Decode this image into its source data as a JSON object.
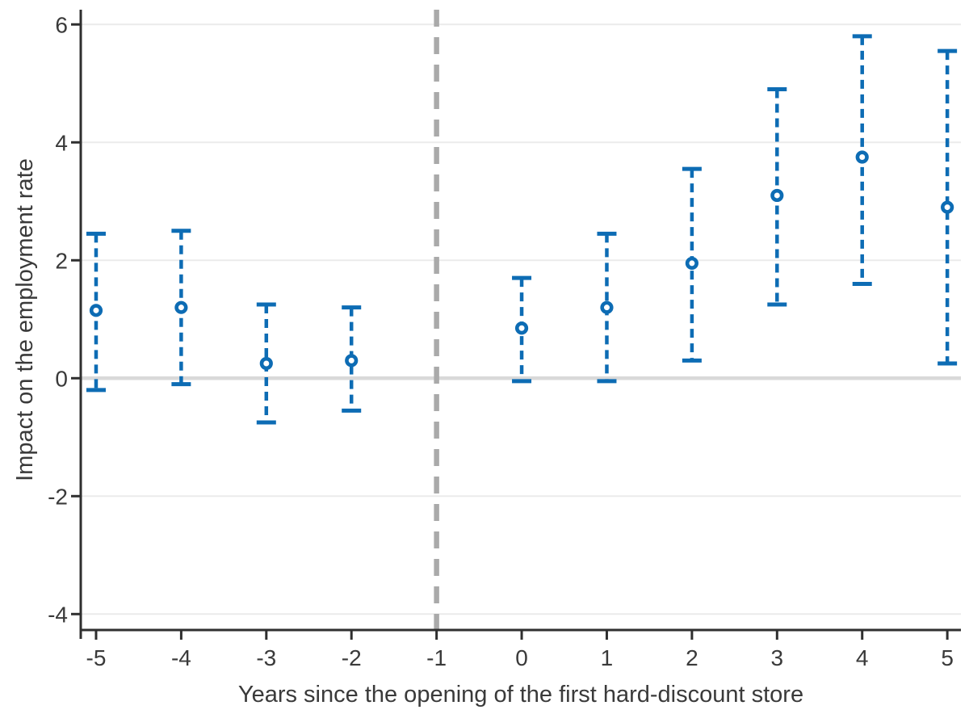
{
  "figure": {
    "background": "#ffffff"
  },
  "chart_data": {
    "type": "scatter",
    "subtype": "event-study point estimates with dashed 95% confidence intervals",
    "title": "",
    "xlabel": "Years since the opening of the first hard-discount store",
    "ylabel": "Impact on the employment rate",
    "x_ticks": [
      -5,
      -4,
      -3,
      -2,
      -1,
      0,
      1,
      2,
      3,
      4,
      5
    ],
    "y_ticks": [
      -4,
      -2,
      0,
      2,
      4,
      6
    ],
    "xlim": [
      -5.18,
      5.16
    ],
    "ylim": [
      -4.27,
      6.25
    ],
    "grid": "horizontal-only",
    "legend": "none",
    "reference_vline_x": -1,
    "baseline_hline_y": 0,
    "series": [
      {
        "name": "point estimate with 95% CI",
        "marker": "open-circle",
        "points": [
          {
            "x": -5,
            "y": 1.15,
            "lo": -0.2,
            "hi": 2.45
          },
          {
            "x": -4,
            "y": 1.2,
            "lo": -0.1,
            "hi": 2.5
          },
          {
            "x": -3,
            "y": 0.25,
            "lo": -0.75,
            "hi": 1.25
          },
          {
            "x": -2,
            "y": 0.3,
            "lo": -0.55,
            "hi": 1.2
          },
          {
            "x": 0,
            "y": 0.85,
            "lo": -0.05,
            "hi": 1.7
          },
          {
            "x": 1,
            "y": 1.2,
            "lo": -0.05,
            "hi": 2.45
          },
          {
            "x": 2,
            "y": 1.95,
            "lo": 0.3,
            "hi": 3.55
          },
          {
            "x": 3,
            "y": 3.1,
            "lo": 1.25,
            "hi": 4.9
          },
          {
            "x": 4,
            "y": 3.75,
            "lo": 1.6,
            "hi": 5.8
          },
          {
            "x": 5,
            "y": 2.9,
            "lo": 0.25,
            "hi": 5.55
          }
        ]
      }
    ],
    "colors": {
      "series_blue": "#0d6cb4",
      "gridline": "#ebebeb",
      "zero_line": "#d9d9d9",
      "reference_line": "#aaaaaa",
      "axis": "#2f2f2f",
      "text": "#3a3a3a",
      "background": "#ffffff"
    }
  }
}
